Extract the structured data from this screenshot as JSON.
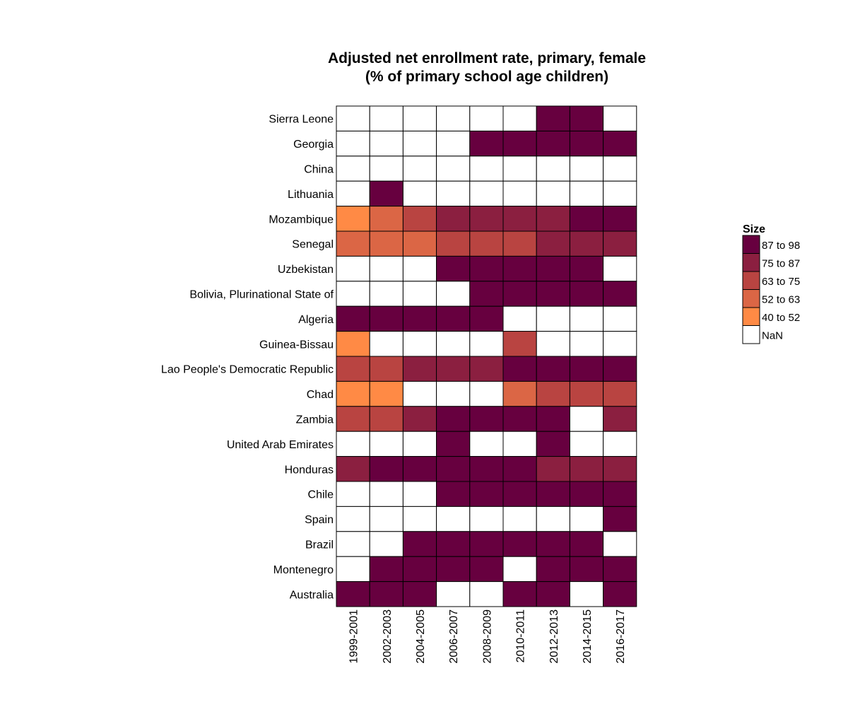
{
  "chart_data": {
    "type": "heatmap",
    "title_lines": [
      "Adjusted net enrollment rate, primary, female",
      "(% of primary school age children)"
    ],
    "xlabel": "",
    "ylabel": "",
    "columns": [
      "1999-2001",
      "2002-2003",
      "2004-2005",
      "2006-2007",
      "2008-2009",
      "2010-2011",
      "2012-2013",
      "2014-2015",
      "2016-2017"
    ],
    "rows": [
      "Sierra Leone",
      "Georgia",
      "China",
      "Lithuania",
      "Mozambique",
      "Senegal",
      "Uzbekistan",
      "Bolivia, Plurinational State of",
      "Algeria",
      "Guinea-Bissau",
      "Lao People's Democratic Republic",
      "Chad",
      "Zambia",
      "United Arab Emirates",
      "Honduras",
      "Chile",
      "Spain",
      "Brazil",
      "Montenegro",
      "Australia"
    ],
    "cells": [
      [
        "NaN",
        "NaN",
        "NaN",
        "NaN",
        "NaN",
        "NaN",
        "87 to 98",
        "87 to 98",
        "NaN"
      ],
      [
        "NaN",
        "NaN",
        "NaN",
        "NaN",
        "87 to 98",
        "87 to 98",
        "87 to 98",
        "87 to 98",
        "87 to 98"
      ],
      [
        "NaN",
        "NaN",
        "NaN",
        "NaN",
        "NaN",
        "NaN",
        "NaN",
        "NaN",
        "NaN"
      ],
      [
        "NaN",
        "87 to 98",
        "NaN",
        "NaN",
        "NaN",
        "NaN",
        "NaN",
        "NaN",
        "NaN"
      ],
      [
        "40 to 52",
        "52 to 63",
        "63 to 75",
        "75 to 87",
        "75 to 87",
        "75 to 87",
        "75 to 87",
        "87 to 98",
        "87 to 98"
      ],
      [
        "52 to 63",
        "52 to 63",
        "52 to 63",
        "63 to 75",
        "63 to 75",
        "63 to 75",
        "75 to 87",
        "75 to 87",
        "75 to 87"
      ],
      [
        "NaN",
        "NaN",
        "NaN",
        "87 to 98",
        "87 to 98",
        "87 to 98",
        "87 to 98",
        "87 to 98",
        "NaN"
      ],
      [
        "NaN",
        "NaN",
        "NaN",
        "NaN",
        "87 to 98",
        "87 to 98",
        "87 to 98",
        "87 to 98",
        "87 to 98"
      ],
      [
        "87 to 98",
        "87 to 98",
        "87 to 98",
        "87 to 98",
        "87 to 98",
        "NaN",
        "NaN",
        "NaN",
        "NaN"
      ],
      [
        "40 to 52",
        "NaN",
        "NaN",
        "NaN",
        "NaN",
        "63 to 75",
        "NaN",
        "NaN",
        "NaN"
      ],
      [
        "63 to 75",
        "63 to 75",
        "75 to 87",
        "75 to 87",
        "75 to 87",
        "87 to 98",
        "87 to 98",
        "87 to 98",
        "87 to 98"
      ],
      [
        "40 to 52",
        "40 to 52",
        "NaN",
        "NaN",
        "NaN",
        "52 to 63",
        "63 to 75",
        "63 to 75",
        "63 to 75"
      ],
      [
        "63 to 75",
        "63 to 75",
        "75 to 87",
        "87 to 98",
        "87 to 98",
        "87 to 98",
        "87 to 98",
        "NaN",
        "75 to 87"
      ],
      [
        "NaN",
        "NaN",
        "NaN",
        "87 to 98",
        "NaN",
        "NaN",
        "87 to 98",
        "NaN",
        "NaN"
      ],
      [
        "75 to 87",
        "87 to 98",
        "87 to 98",
        "87 to 98",
        "87 to 98",
        "87 to 98",
        "75 to 87",
        "75 to 87",
        "75 to 87"
      ],
      [
        "NaN",
        "NaN",
        "NaN",
        "87 to 98",
        "87 to 98",
        "87 to 98",
        "87 to 98",
        "87 to 98",
        "87 to 98"
      ],
      [
        "NaN",
        "NaN",
        "NaN",
        "NaN",
        "NaN",
        "NaN",
        "NaN",
        "NaN",
        "87 to 98"
      ],
      [
        "NaN",
        "NaN",
        "87 to 98",
        "87 to 98",
        "87 to 98",
        "87 to 98",
        "87 to 98",
        "87 to 98",
        "NaN"
      ],
      [
        "NaN",
        "87 to 98",
        "87 to 98",
        "87 to 98",
        "87 to 98",
        "NaN",
        "87 to 98",
        "87 to 98",
        "87 to 98"
      ],
      [
        "87 to 98",
        "87 to 98",
        "87 to 98",
        "NaN",
        "NaN",
        "87 to 98",
        "87 to 98",
        "NaN",
        "87 to 98"
      ]
    ],
    "legend": {
      "title": "Size",
      "placement": "right",
      "items": [
        {
          "label": "87 to 98",
          "color": "#67003f"
        },
        {
          "label": "75 to 87",
          "color": "#8b1f40"
        },
        {
          "label": "63 to 75",
          "color": "#b94441"
        },
        {
          "label": "52 to 63",
          "color": "#db6645"
        },
        {
          "label": "40 to 52",
          "color": "#ff8a45"
        },
        {
          "label": "NaN",
          "color": "#ffffff"
        }
      ]
    },
    "grid": false
  }
}
